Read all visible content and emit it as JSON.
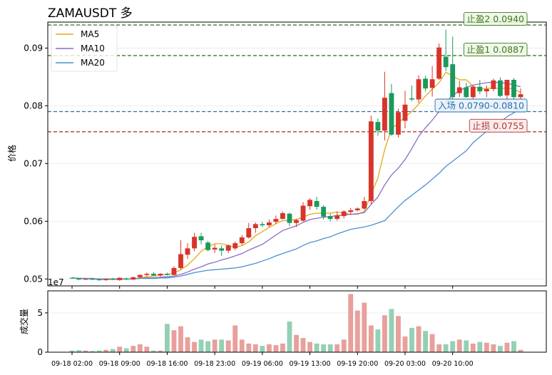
{
  "chart_data": {
    "type": "candlestick",
    "title": "ZAMAUSDT 多",
    "ylabel": "价格",
    "volume_ylabel": "成交量",
    "offset_label": "1e7",
    "ylim": [
      0.0488,
      0.0945
    ],
    "yticks": [
      "0.05",
      "0.06",
      "0.07",
      "0.08",
      "0.09"
    ],
    "volume_ylim": [
      0,
      7.8
    ],
    "volume_yticks": [
      "0",
      "5"
    ],
    "x_tick_labels": [
      "09-18 02:00",
      "09-18 09:00",
      "09-18 16:00",
      "09-18 23:00",
      "09-19 06:00",
      "09-19 13:00",
      "09-19 20:00",
      "09-20 03:00",
      "09-20 10:00"
    ],
    "legend": [
      {
        "name": "MA5",
        "color": "#e6a817"
      },
      {
        "name": "MA10",
        "color": "#8a6cc4"
      },
      {
        "name": "MA20",
        "color": "#4a90d0"
      }
    ],
    "levels": [
      {
        "label": "止盈2 0.0940",
        "value": 0.094,
        "color": "#3d7a1e",
        "box_bg": "#eef5e6"
      },
      {
        "label": "止盈1 0.0887",
        "value": 0.0887,
        "color": "#3d7a1e",
        "box_bg": "#eef5e6"
      },
      {
        "label": "入场 0.0790-0.0810",
        "value": 0.079,
        "color": "#2a6fa8",
        "box_bg": "#e8f1f9"
      },
      {
        "label": "止损 0.0755",
        "value": 0.0755,
        "color": "#b03a3a",
        "box_bg": "#fbeaea"
      }
    ],
    "up_color": "#d8342a",
    "down_color": "#1a9a5c",
    "candles": [
      [
        0.0502,
        0.0503,
        0.05,
        0.0501
      ],
      [
        0.0501,
        0.0502,
        0.0498,
        0.0499
      ],
      [
        0.0499,
        0.0501,
        0.0498,
        0.05
      ],
      [
        0.05,
        0.0501,
        0.0498,
        0.0499
      ],
      [
        0.0499,
        0.05,
        0.0497,
        0.0498
      ],
      [
        0.0498,
        0.0501,
        0.0497,
        0.05
      ],
      [
        0.05,
        0.0502,
        0.0498,
        0.0499
      ],
      [
        0.0498,
        0.0503,
        0.0497,
        0.0502
      ],
      [
        0.0501,
        0.0502,
        0.0498,
        0.0499
      ],
      [
        0.0499,
        0.0504,
        0.0498,
        0.0503
      ],
      [
        0.0503,
        0.0508,
        0.0502,
        0.0507
      ],
      [
        0.0507,
        0.0511,
        0.0505,
        0.0509
      ],
      [
        0.0509,
        0.0512,
        0.0505,
        0.0506
      ],
      [
        0.0506,
        0.051,
        0.0504,
        0.0509
      ],
      [
        0.0509,
        0.0511,
        0.0506,
        0.0507
      ],
      [
        0.0507,
        0.0522,
        0.0506,
        0.0519
      ],
      [
        0.0519,
        0.0567,
        0.0516,
        0.0543
      ],
      [
        0.0542,
        0.0562,
        0.0535,
        0.0553
      ],
      [
        0.0553,
        0.058,
        0.0548,
        0.0573
      ],
      [
        0.0574,
        0.058,
        0.056,
        0.0567
      ],
      [
        0.0563,
        0.0566,
        0.0548,
        0.055
      ],
      [
        0.0551,
        0.056,
        0.0545,
        0.0554
      ],
      [
        0.0553,
        0.0558,
        0.054,
        0.0549
      ],
      [
        0.0549,
        0.056,
        0.0545,
        0.0558
      ],
      [
        0.0553,
        0.0565,
        0.055,
        0.0562
      ],
      [
        0.0562,
        0.0576,
        0.0559,
        0.0572
      ],
      [
        0.0572,
        0.0597,
        0.057,
        0.0588
      ],
      [
        0.0588,
        0.0598,
        0.058,
        0.0595
      ],
      [
        0.0595,
        0.0599,
        0.059,
        0.0593
      ],
      [
        0.0593,
        0.0603,
        0.059,
        0.0598
      ],
      [
        0.0599,
        0.061,
        0.0595,
        0.0604
      ],
      [
        0.0604,
        0.0617,
        0.0603,
        0.0614
      ],
      [
        0.0613,
        0.0615,
        0.0591,
        0.0597
      ],
      [
        0.0597,
        0.0604,
        0.059,
        0.0602
      ],
      [
        0.0601,
        0.0633,
        0.0599,
        0.0627
      ],
      [
        0.0626,
        0.064,
        0.062,
        0.0637
      ],
      [
        0.0635,
        0.0642,
        0.062,
        0.0625
      ],
      [
        0.0625,
        0.0628,
        0.0603,
        0.0608
      ],
      [
        0.0609,
        0.0613,
        0.06,
        0.0604
      ],
      [
        0.0604,
        0.0617,
        0.0601,
        0.061
      ],
      [
        0.0609,
        0.0619,
        0.0605,
        0.0617
      ],
      [
        0.0616,
        0.0623,
        0.0611,
        0.0619
      ],
      [
        0.0619,
        0.0624,
        0.0617,
        0.0622
      ],
      [
        0.0622,
        0.0642,
        0.062,
        0.0635
      ],
      [
        0.0635,
        0.0783,
        0.063,
        0.0773
      ],
      [
        0.0772,
        0.0778,
        0.0748,
        0.0757
      ],
      [
        0.0757,
        0.0859,
        0.074,
        0.0814
      ],
      [
        0.0822,
        0.0838,
        0.0748,
        0.075
      ],
      [
        0.075,
        0.0795,
        0.0745,
        0.0789
      ],
      [
        0.0774,
        0.0826,
        0.0761,
        0.0802
      ],
      [
        0.0813,
        0.0835,
        0.0808,
        0.0811
      ],
      [
        0.0811,
        0.0853,
        0.0805,
        0.0846
      ],
      [
        0.0847,
        0.0852,
        0.0825,
        0.083
      ],
      [
        0.0831,
        0.0869,
        0.0816,
        0.0846
      ],
      [
        0.0847,
        0.0908,
        0.0845,
        0.0901
      ],
      [
        0.0885,
        0.0932,
        0.086,
        0.0867
      ],
      [
        0.0872,
        0.092,
        0.0812,
        0.0815
      ],
      [
        0.0822,
        0.0843,
        0.0815,
        0.0832
      ],
      [
        0.0832,
        0.084,
        0.0814,
        0.0815
      ],
      [
        0.0815,
        0.0835,
        0.081,
        0.0833
      ],
      [
        0.0833,
        0.0845,
        0.082,
        0.0825
      ],
      [
        0.0825,
        0.0835,
        0.0815,
        0.0829
      ],
      [
        0.0829,
        0.0847,
        0.0825,
        0.0844
      ],
      [
        0.0844,
        0.0849,
        0.0815,
        0.0817
      ],
      [
        0.0818,
        0.0845,
        0.0791,
        0.0845
      ],
      [
        0.0845,
        0.0848,
        0.0812,
        0.0815
      ],
      [
        0.0815,
        0.083,
        0.081,
        0.082
      ]
    ],
    "volume": [
      0.2,
      0.25,
      0.2,
      0.15,
      0.2,
      0.3,
      0.4,
      0.7,
      0.5,
      0.8,
      1.0,
      0.7,
      0.2,
      0.2,
      3.6,
      2.8,
      3.3,
      1.9,
      1.3,
      1.6,
      1.4,
      1.6,
      1.6,
      1.5,
      3.4,
      1.6,
      1.1,
      1.0,
      0.8,
      1.0,
      0.9,
      1.1,
      3.9,
      2.2,
      1.8,
      1.3,
      1.1,
      1.0,
      1.0,
      1.0,
      1.6,
      7.4,
      5.3,
      6.3,
      3.4,
      2.9,
      4.7,
      5.5,
      4.6,
      2.0,
      3.1,
      3.3,
      2.7,
      2.3,
      1.0,
      1.0,
      1.4,
      1.6,
      1.5,
      1.1,
      1.3,
      1.2,
      1.0,
      0.8,
      1.2,
      1.4,
      0.3
    ],
    "ma5": [
      0.0502,
      0.0501,
      0.05,
      0.05,
      0.0499,
      0.0499,
      0.0499,
      0.0499,
      0.05,
      0.05,
      0.0502,
      0.0504,
      0.0505,
      0.0507,
      0.0508,
      0.051,
      0.0516,
      0.0524,
      0.0535,
      0.0548,
      0.0556,
      0.0561,
      0.0561,
      0.0558,
      0.0555,
      0.0558,
      0.0564,
      0.0575,
      0.0582,
      0.0589,
      0.0596,
      0.0601,
      0.0602,
      0.0603,
      0.0607,
      0.0612,
      0.0614,
      0.0614,
      0.0614,
      0.0616,
      0.0614,
      0.0612,
      0.0612,
      0.0617,
      0.0646,
      0.0675,
      0.0724,
      0.076,
      0.077,
      0.0781,
      0.079,
      0.0803,
      0.0817,
      0.0829,
      0.084,
      0.0858,
      0.0852,
      0.0845,
      0.0845,
      0.0834,
      0.0829,
      0.083,
      0.0831,
      0.083,
      0.0831,
      0.0829,
      0.0823
    ],
    "ma10": [
      0.0502,
      0.0501,
      0.0501,
      0.05,
      0.05,
      0.05,
      0.05,
      0.05,
      0.05,
      0.05,
      0.0501,
      0.0502,
      0.0502,
      0.0503,
      0.0504,
      0.0505,
      0.0508,
      0.0512,
      0.0517,
      0.0521,
      0.0526,
      0.0529,
      0.0533,
      0.0536,
      0.054,
      0.0544,
      0.055,
      0.0555,
      0.056,
      0.0568,
      0.0576,
      0.0584,
      0.0588,
      0.0592,
      0.0598,
      0.0603,
      0.0605,
      0.0607,
      0.0608,
      0.061,
      0.0611,
      0.0612,
      0.0613,
      0.0615,
      0.0629,
      0.0642,
      0.0663,
      0.068,
      0.0692,
      0.0707,
      0.0726,
      0.0747,
      0.0762,
      0.0775,
      0.079,
      0.0806,
      0.0818,
      0.0826,
      0.0832,
      0.0836,
      0.0838,
      0.084,
      0.0841,
      0.084,
      0.0839,
      0.0836,
      0.0833
    ],
    "ma20": [
      0.0502,
      0.0501,
      0.0501,
      0.0501,
      0.05,
      0.05,
      0.05,
      0.05,
      0.05,
      0.05,
      0.0501,
      0.0501,
      0.0501,
      0.0502,
      0.0502,
      0.0503,
      0.0505,
      0.0508,
      0.0511,
      0.0513,
      0.0515,
      0.0516,
      0.0517,
      0.0518,
      0.0519,
      0.0521,
      0.0524,
      0.0527,
      0.0531,
      0.0535,
      0.054,
      0.0544,
      0.0548,
      0.0552,
      0.0558,
      0.0563,
      0.0566,
      0.057,
      0.0573,
      0.0578,
      0.0582,
      0.0586,
      0.0588,
      0.059,
      0.0593,
      0.0597,
      0.0601,
      0.0613,
      0.0625,
      0.0636,
      0.0645,
      0.0654,
      0.0663,
      0.0673,
      0.0683,
      0.0695,
      0.0704,
      0.0713,
      0.0722,
      0.0736,
      0.0746,
      0.0756,
      0.0763,
      0.0772,
      0.0781,
      0.0788,
      0.0795
    ]
  }
}
